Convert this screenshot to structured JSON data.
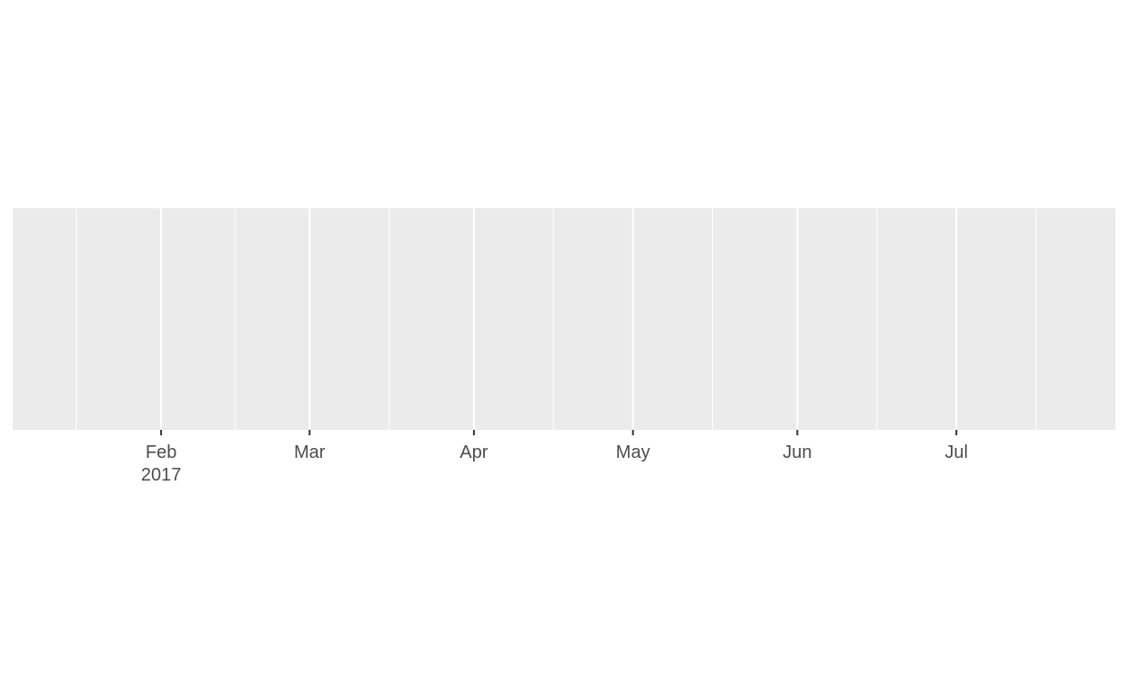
{
  "chart_data": {
    "type": "line",
    "title": "",
    "xlabel": "",
    "ylabel": "",
    "x_axis": {
      "scale": "date",
      "range": [
        "2017-01-04",
        "2017-07-31"
      ],
      "major_ticks": [
        {
          "date": "2017-02-01",
          "label": "Feb",
          "sublabel": "2017"
        },
        {
          "date": "2017-03-01",
          "label": "Mar",
          "sublabel": ""
        },
        {
          "date": "2017-04-01",
          "label": "Apr",
          "sublabel": ""
        },
        {
          "date": "2017-05-01",
          "label": "May",
          "sublabel": ""
        },
        {
          "date": "2017-06-01",
          "label": "Jun",
          "sublabel": ""
        },
        {
          "date": "2017-07-01",
          "label": "Jul",
          "sublabel": ""
        }
      ],
      "minor_gridlines": [
        "2017-01-16",
        "2017-02-15",
        "2017-03-16",
        "2017-04-16",
        "2017-05-16",
        "2017-06-16",
        "2017-07-16"
      ]
    },
    "y_axis": {
      "ticks": [],
      "range": null
    },
    "series": [],
    "grid": true,
    "legend": "none",
    "colors": {
      "panel": "#ebebeb",
      "grid": "#ffffff",
      "text": "#4d4d4d",
      "tick": "#333333"
    }
  }
}
